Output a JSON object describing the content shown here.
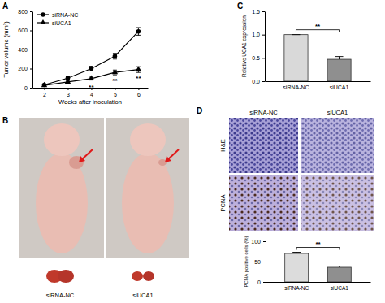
{
  "chart_data": [
    {
      "type": "line",
      "x": [
        2,
        3,
        4,
        5,
        6
      ],
      "xlim": [
        1.5,
        6.4
      ],
      "xticks": [
        2,
        3,
        4,
        5,
        6
      ],
      "ylim": [
        0,
        800
      ],
      "yticks": [
        0,
        200,
        400,
        600,
        800
      ],
      "x_label": "Weeks after inoculation",
      "y_label": "Tumor volume (mm³)",
      "legend": "upper left",
      "series": [
        {
          "name": "siRNA-NC",
          "color": "#000000",
          "marker": "circle",
          "line_style": "solid",
          "values": [
            30,
            100,
            200,
            330,
            590
          ],
          "errors": [
            8,
            15,
            25,
            30,
            40
          ]
        },
        {
          "name": "siUCA1",
          "color": "#000000",
          "marker": "triangle",
          "line_style": "solid",
          "values": [
            25,
            60,
            95,
            160,
            190
          ],
          "errors": [
            5,
            10,
            15,
            25,
            30
          ]
        }
      ],
      "annotations": [
        {
          "text": "**",
          "x": 4
        },
        {
          "text": "**",
          "x": 5
        },
        {
          "text": "**",
          "x": 6
        }
      ]
    },
    {
      "type": "bar",
      "categories": [
        "siRNA-NC",
        "siUCA1"
      ],
      "values": [
        1.0,
        0.47
      ],
      "errors": [
        0,
        0.06
      ],
      "colors": [
        "#d9d9d9",
        "#8f8f8f"
      ],
      "ylim": [
        0,
        1.5
      ],
      "yticks": [
        {
          "value": 0,
          "label": "0.0"
        },
        {
          "value": 0.5,
          "label": "0.5"
        },
        {
          "value": 1,
          "label": "1.0"
        },
        {
          "value": 1.5,
          "label": "1.5"
        }
      ],
      "y_label": "Relative UCA1 expression",
      "annotations": [
        {
          "text": "**"
        }
      ]
    },
    {
      "type": "bar",
      "categories": [
        "siRNA-NC",
        "siUCA1"
      ],
      "values": [
        70,
        36
      ],
      "errors": [
        3,
        3
      ],
      "colors": [
        "#dcdcdc",
        "#8f8f8f"
      ],
      "ylim": [
        0,
        100
      ],
      "yticks": [
        0,
        50,
        100
      ],
      "y_label": "PCNA positive cells (%)",
      "annotations": [
        {
          "text": "**"
        }
      ]
    }
  ],
  "figure": {
    "panel_labels": [
      "A",
      "B",
      "C",
      "D"
    ],
    "photo_labels": [
      "siRNA-NC",
      "siUCA1"
    ],
    "micrograph_columns": [
      "siRNA-NC",
      "siUCA1"
    ],
    "micrograph_rows": [
      "H&E",
      "PCNA"
    ]
  }
}
